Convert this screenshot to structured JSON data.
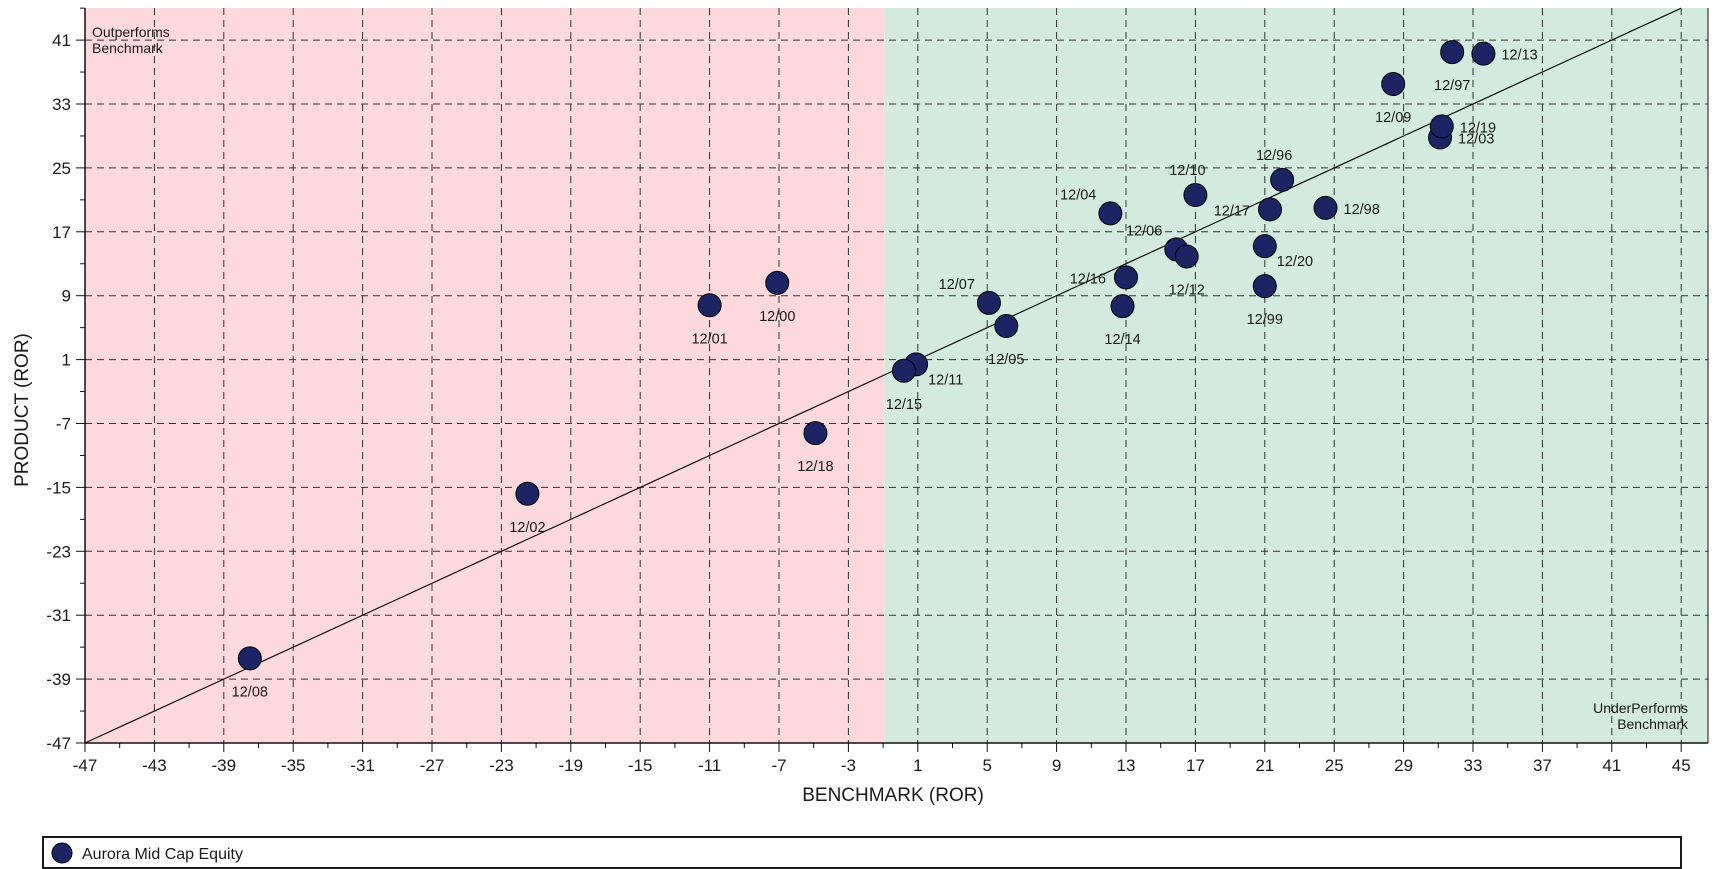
{
  "chart_data": {
    "type": "scatter",
    "xlabel": "BENCHMARK (ROR)",
    "ylabel": "PRODUCT (ROR)",
    "xlim": [
      -47,
      45
    ],
    "ylim": [
      -47,
      46
    ],
    "x_ticks": [
      -47,
      -43,
      -39,
      -35,
      -31,
      -27,
      -23,
      -19,
      -15,
      -11,
      -7,
      -3,
      1,
      5,
      9,
      13,
      17,
      21,
      25,
      29,
      33,
      37,
      41,
      45
    ],
    "y_ticks": [
      -47,
      -39,
      -31,
      -23,
      -15,
      -7,
      1,
      9,
      17,
      25,
      33,
      41
    ],
    "grid": true,
    "reference_line": "y = x",
    "regions": {
      "outperforms_label": [
        "Outperforms",
        "Benchmark"
      ],
      "underperforms_label": [
        "UnderPerforms",
        "Benchmark"
      ],
      "outperforms_color": "#fdd8dd",
      "underperforms_color": "#d3ebde",
      "boundary_x": -0.9
    },
    "legend": {
      "position": "bottom",
      "entries": [
        {
          "name": "Aurora Mid Cap Equity",
          "color": "#1c2464"
        }
      ]
    },
    "series": [
      {
        "name": "Aurora Mid Cap Equity",
        "color": "#1c2464",
        "points": [
          {
            "label": "12/96",
            "x": 22.0,
            "y": 23.5,
            "label_pos": "above"
          },
          {
            "label": "12/97",
            "x": 31.8,
            "y": 39.5,
            "label_pos": "below"
          },
          {
            "label": "12/98",
            "x": 24.5,
            "y": 20.0,
            "label_pos": "right"
          },
          {
            "label": "12/99",
            "x": 21.0,
            "y": 10.2,
            "label_pos": "below"
          },
          {
            "label": "12/00",
            "x": -7.1,
            "y": 10.6,
            "label_pos": "below"
          },
          {
            "label": "12/01",
            "x": -11.0,
            "y": 7.8,
            "label_pos": "below"
          },
          {
            "label": "12/02",
            "x": -21.5,
            "y": -15.8,
            "label_pos": "below"
          },
          {
            "label": "12/03",
            "x": 31.1,
            "y": 28.8,
            "label_pos": "right"
          },
          {
            "label": "12/04",
            "x": 12.1,
            "y": 19.3,
            "label_pos": "above-left"
          },
          {
            "label": "12/05",
            "x": 6.1,
            "y": 5.2,
            "label_pos": "below"
          },
          {
            "label": "12/06",
            "x": 15.9,
            "y": 14.8,
            "label_pos": "above-left"
          },
          {
            "label": "12/07",
            "x": 5.1,
            "y": 8.1,
            "label_pos": "above-left"
          },
          {
            "label": "12/08",
            "x": -37.5,
            "y": -36.4,
            "label_pos": "below"
          },
          {
            "label": "12/09",
            "x": 28.4,
            "y": 35.5,
            "label_pos": "below"
          },
          {
            "label": "12/10",
            "x": 17.0,
            "y": 21.6,
            "label_pos": "above"
          },
          {
            "label": "12/11",
            "x": 0.9,
            "y": 0.4,
            "label_pos": "below-right"
          },
          {
            "label": "12/12",
            "x": 16.5,
            "y": 13.9,
            "label_pos": "below"
          },
          {
            "label": "12/13",
            "x": 33.6,
            "y": 39.3,
            "label_pos": "right"
          },
          {
            "label": "12/14",
            "x": 12.8,
            "y": 7.7,
            "label_pos": "below"
          },
          {
            "label": "12/15",
            "x": 0.2,
            "y": -0.4,
            "label_pos": "below"
          },
          {
            "label": "12/16",
            "x": 13.0,
            "y": 11.3,
            "label_pos": "left"
          },
          {
            "label": "12/17",
            "x": 21.3,
            "y": 19.8,
            "label_pos": "left"
          },
          {
            "label": "12/18",
            "x": -4.9,
            "y": -8.2,
            "label_pos": "below"
          },
          {
            "label": "12/19",
            "x": 31.2,
            "y": 30.2,
            "label_pos": "right"
          },
          {
            "label": "12/20",
            "x": 21.0,
            "y": 15.2,
            "label_pos": "below-right"
          }
        ]
      }
    ]
  }
}
